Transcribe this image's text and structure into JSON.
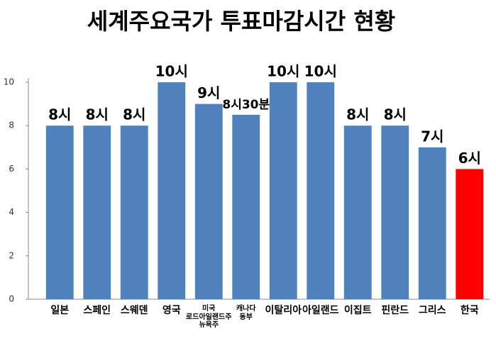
{
  "chart_data": {
    "type": "bar",
    "title": "세계주요국가 투표마감시간 현황",
    "categories": [
      "일본",
      "스페인",
      "스웨덴",
      "영국",
      "미국\n로드아일랜드주\n뉴욕주",
      "캐나다\n동부",
      "이탈리아",
      "아일랜드",
      "이집트",
      "핀란드",
      "그리스",
      "한국"
    ],
    "values": [
      8,
      8,
      8,
      10,
      9,
      8.5,
      10,
      10,
      8,
      8,
      7,
      6
    ],
    "value_labels": [
      "8시",
      "8시",
      "8시",
      "10시",
      "9시",
      "8시30분",
      "10시",
      "10시",
      "8시",
      "8시",
      "7시",
      "6시"
    ],
    "colors": [
      "#4f81bd",
      "#4f81bd",
      "#4f81bd",
      "#4f81bd",
      "#4f81bd",
      "#4f81bd",
      "#4f81bd",
      "#4f81bd",
      "#4f81bd",
      "#4f81bd",
      "#4f81bd",
      "#ff0000"
    ],
    "ylim": [
      0,
      10
    ],
    "yticks": [
      0,
      2,
      4,
      6,
      8,
      10
    ],
    "grid": false
  }
}
